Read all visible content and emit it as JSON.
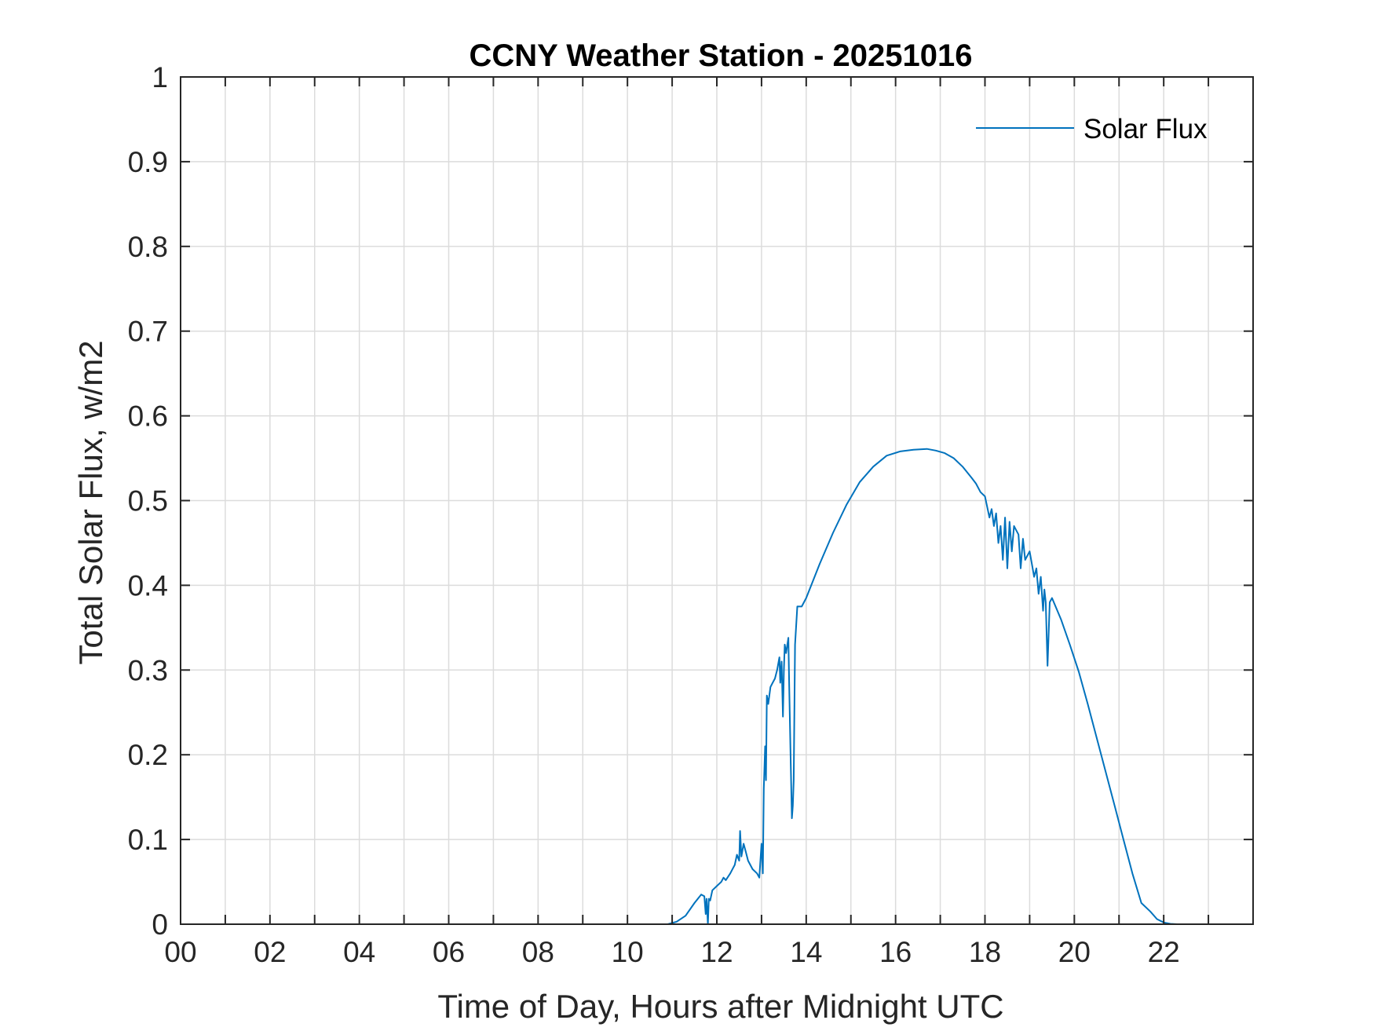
{
  "chart_data": {
    "type": "line",
    "title": "CCNY Weather Station - 20251016",
    "xlabel": "Time of Day, Hours after Midnight UTC",
    "ylabel": "Total Solar Flux, w/m2",
    "xlim": [
      0,
      24
    ],
    "ylim": [
      0,
      1
    ],
    "grid": true,
    "legend_position": "top-right",
    "x_ticks": [
      0,
      2,
      4,
      6,
      8,
      10,
      12,
      14,
      16,
      18,
      20,
      22
    ],
    "x_tick_labels": [
      "00",
      "02",
      "04",
      "06",
      "08",
      "10",
      "12",
      "14",
      "16",
      "18",
      "20",
      "22"
    ],
    "x_minor_ticks": [
      1,
      3,
      5,
      7,
      9,
      11,
      13,
      15,
      17,
      19,
      21,
      23
    ],
    "y_ticks": [
      0,
      0.1,
      0.2,
      0.3,
      0.4,
      0.5,
      0.6,
      0.7,
      0.8,
      0.9,
      1
    ],
    "y_tick_labels": [
      "0",
      "0.1",
      "0.2",
      "0.3",
      "0.4",
      "0.5",
      "0.6",
      "0.7",
      "0.8",
      "0.9",
      "1"
    ],
    "series": [
      {
        "name": "Solar Flux",
        "color": "#0072BD",
        "x": [
          0,
          10.9,
          11.1,
          11.3,
          11.5,
          11.65,
          11.72,
          11.75,
          11.77,
          11.8,
          11.82,
          11.85,
          11.9,
          12.0,
          12.1,
          12.15,
          12.2,
          12.3,
          12.35,
          12.4,
          12.45,
          12.5,
          12.52,
          12.55,
          12.6,
          12.65,
          12.7,
          12.8,
          12.9,
          12.95,
          13.0,
          13.03,
          13.05,
          13.08,
          13.1,
          13.12,
          13.15,
          13.2,
          13.25,
          13.3,
          13.35,
          13.4,
          13.42,
          13.45,
          13.48,
          13.5,
          13.52,
          13.55,
          13.6,
          13.62,
          13.65,
          13.68,
          13.7,
          13.72,
          13.75,
          13.8,
          13.85,
          13.9,
          14.0,
          14.3,
          14.6,
          14.9,
          15.2,
          15.5,
          15.8,
          16.1,
          16.4,
          16.7,
          16.9,
          17.1,
          17.3,
          17.5,
          17.7,
          17.8,
          17.9,
          18.0,
          18.1,
          18.15,
          18.2,
          18.25,
          18.3,
          18.35,
          18.4,
          18.45,
          18.5,
          18.55,
          18.6,
          18.65,
          18.7,
          18.75,
          18.8,
          18.85,
          18.9,
          19.0,
          19.05,
          19.1,
          19.15,
          19.2,
          19.25,
          19.3,
          19.33,
          19.36,
          19.4,
          19.45,
          19.5,
          19.7,
          19.9,
          20.1,
          20.3,
          20.5,
          20.7,
          20.9,
          21.1,
          21.3,
          21.5,
          21.7,
          21.85,
          22.0,
          22.15,
          22.3,
          22.5,
          22.7,
          23.0,
          24.0
        ],
        "values": [
          0,
          0,
          0.003,
          0.01,
          0.025,
          0.035,
          0.033,
          0.012,
          0.03,
          0.0,
          0.03,
          0.028,
          0.04,
          0.045,
          0.05,
          0.055,
          0.052,
          0.06,
          0.065,
          0.07,
          0.082,
          0.075,
          0.11,
          0.08,
          0.095,
          0.085,
          0.075,
          0.065,
          0.06,
          0.055,
          0.095,
          0.06,
          0.16,
          0.21,
          0.17,
          0.27,
          0.26,
          0.28,
          0.285,
          0.29,
          0.3,
          0.315,
          0.285,
          0.31,
          0.245,
          0.3,
          0.33,
          0.32,
          0.338,
          0.28,
          0.2,
          0.125,
          0.14,
          0.17,
          0.33,
          0.375,
          0.375,
          0.375,
          0.385,
          0.425,
          0.462,
          0.495,
          0.522,
          0.54,
          0.553,
          0.558,
          0.56,
          0.561,
          0.559,
          0.556,
          0.55,
          0.54,
          0.527,
          0.52,
          0.51,
          0.505,
          0.48,
          0.49,
          0.47,
          0.485,
          0.45,
          0.47,
          0.43,
          0.48,
          0.42,
          0.475,
          0.44,
          0.47,
          0.465,
          0.46,
          0.42,
          0.455,
          0.43,
          0.44,
          0.425,
          0.41,
          0.42,
          0.39,
          0.41,
          0.37,
          0.395,
          0.38,
          0.305,
          0.38,
          0.385,
          0.36,
          0.33,
          0.298,
          0.26,
          0.22,
          0.18,
          0.14,
          0.1,
          0.06,
          0.025,
          0.015,
          0.006,
          0.002,
          0.0005,
          0,
          0,
          0,
          0,
          0
        ]
      }
    ]
  }
}
